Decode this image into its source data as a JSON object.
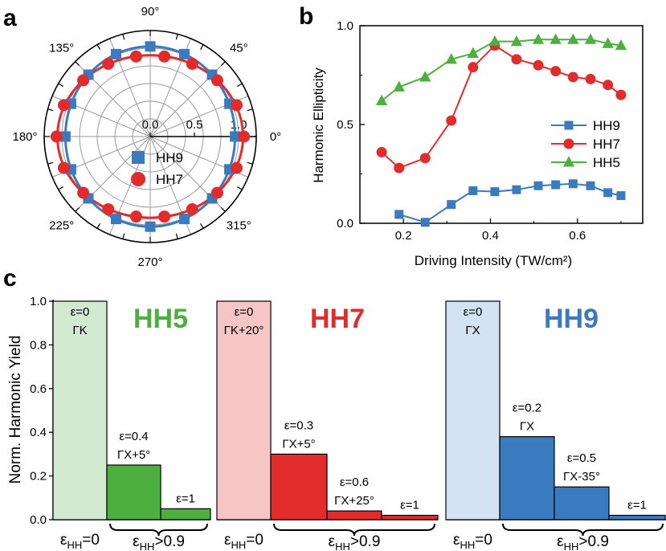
{
  "panels": {
    "a": "a",
    "b": "b",
    "c": "c"
  },
  "chart_data": [
    {
      "type": "scatter",
      "projection": "polar",
      "panel": "a",
      "angle_labels": [
        "90°",
        "45°",
        "0°",
        "315°",
        "270°",
        "225°",
        "180°",
        "135°"
      ],
      "angle_values": [
        90,
        45,
        0,
        315,
        270,
        225,
        180,
        135
      ],
      "radial_ticks": [
        "0.0",
        "0.5",
        "1.0"
      ],
      "rlim": [
        0,
        1.2
      ],
      "series": [
        {
          "name": "HH9",
          "color": "#3a7bbf",
          "marker": "square",
          "angles": [
            0,
            22.5,
            45,
            67.5,
            90,
            112.5,
            135,
            157.5,
            180,
            202.5,
            225,
            247.5,
            270,
            292.5,
            315,
            337.5
          ],
          "r": [
            0.96,
            0.97,
            0.99,
            1.01,
            1.02,
            1.01,
            0.99,
            0.97,
            0.96,
            0.97,
            0.99,
            1.01,
            1.02,
            1.01,
            0.99,
            0.97
          ],
          "fit_major": 1.02,
          "fit_minor": 0.96
        },
        {
          "name": "HH7",
          "color": "#e22b2b",
          "marker": "circle",
          "angles": [
            0,
            20,
            40,
            60,
            80,
            100,
            120,
            140,
            160,
            180,
            200,
            220,
            240,
            260,
            280,
            300,
            320,
            340
          ],
          "r": [
            1.06,
            1.04,
            0.99,
            0.95,
            0.92,
            0.92,
            0.95,
            0.99,
            1.04,
            1.06,
            1.04,
            0.99,
            0.95,
            0.92,
            0.92,
            0.95,
            0.99,
            1.04
          ],
          "fit_major": 1.05,
          "fit_minor": 0.92
        }
      ],
      "legend": [
        "HH9",
        "HH7"
      ]
    },
    {
      "type": "line",
      "panel": "b",
      "xlabel": "Driving Intensity (TW/cm²)",
      "ylabel": "Harmonic Ellipticity",
      "xlim": [
        0.1,
        0.75
      ],
      "ylim": [
        0.0,
        1.0
      ],
      "xticks": [
        0.2,
        0.4,
        0.6
      ],
      "xtick_labels": [
        "0.2",
        "0.4",
        "0.6"
      ],
      "yticks": [
        0.0,
        0.5,
        1.0
      ],
      "ytick_labels": [
        "0.0",
        "0.5",
        "1.0"
      ],
      "series": [
        {
          "name": "HH9",
          "color": "#3a7bbf",
          "marker": "square",
          "x": [
            0.19,
            0.25,
            0.31,
            0.36,
            0.41,
            0.46,
            0.51,
            0.55,
            0.59,
            0.63,
            0.67,
            0.7
          ],
          "y": [
            0.045,
            0.005,
            0.095,
            0.165,
            0.16,
            0.17,
            0.19,
            0.195,
            0.2,
            0.19,
            0.155,
            0.14
          ]
        },
        {
          "name": "HH7",
          "color": "#e22b2b",
          "marker": "circle",
          "x": [
            0.15,
            0.19,
            0.25,
            0.31,
            0.36,
            0.41,
            0.46,
            0.51,
            0.55,
            0.59,
            0.63,
            0.67,
            0.7
          ],
          "y": [
            0.36,
            0.28,
            0.33,
            0.52,
            0.79,
            0.9,
            0.83,
            0.8,
            0.77,
            0.74,
            0.73,
            0.7,
            0.65
          ]
        },
        {
          "name": "HH5",
          "color": "#4caf3e",
          "marker": "triangle",
          "x": [
            0.15,
            0.19,
            0.25,
            0.31,
            0.36,
            0.41,
            0.46,
            0.51,
            0.55,
            0.59,
            0.63,
            0.67,
            0.7
          ],
          "y": [
            0.62,
            0.69,
            0.74,
            0.83,
            0.86,
            0.92,
            0.92,
            0.93,
            0.93,
            0.93,
            0.93,
            0.91,
            0.9
          ]
        }
      ],
      "legend": [
        "HH9",
        "HH7",
        "HH5"
      ]
    },
    {
      "type": "bar",
      "panel": "c",
      "ylabel": "Norm. Harmonic Yield",
      "ylim": [
        0.0,
        1.0
      ],
      "yticks": [
        0.0,
        0.2,
        0.4,
        0.6,
        0.8,
        1.0
      ],
      "ytick_labels": [
        "0.0",
        "0.2",
        "0.4",
        "0.6",
        "0.8",
        "1.0"
      ],
      "groups": [
        {
          "title": "HH5",
          "color": "#4caf3e",
          "light": "#d2ead0",
          "values": [
            1.0,
            0.25,
            0.05
          ],
          "labels": [
            [
              "ε=0",
              "ΓK"
            ],
            [
              "ε=0.4",
              "ΓX+5°"
            ],
            [
              "ε=1"
            ]
          ]
        },
        {
          "title": "HH7",
          "color": "#e22b2b",
          "light": "#f6c6c6",
          "values": [
            1.0,
            0.3,
            0.04,
            0.02
          ],
          "labels": [
            [
              "ε=0",
              "ΓK+20°"
            ],
            [
              "ε=0.3",
              "ΓX+5°"
            ],
            [
              "ε=0.6",
              "ΓX+25°"
            ],
            [
              "ε=1"
            ]
          ]
        },
        {
          "title": "HH9",
          "color": "#3a7bbf",
          "light": "#d3e3f1",
          "values": [
            1.0,
            0.38,
            0.15,
            0.02
          ],
          "labels": [
            [
              "ε=0",
              "ΓX"
            ],
            [
              "ε=0.2",
              "ΓX"
            ],
            [
              "ε=0.5",
              "ΓX-35°"
            ],
            [
              "ε=1"
            ]
          ]
        }
      ],
      "bottom_labels": {
        "eps": "ε",
        "sub": "HH",
        "zero": "=0",
        "high": ">0.9"
      }
    }
  ]
}
